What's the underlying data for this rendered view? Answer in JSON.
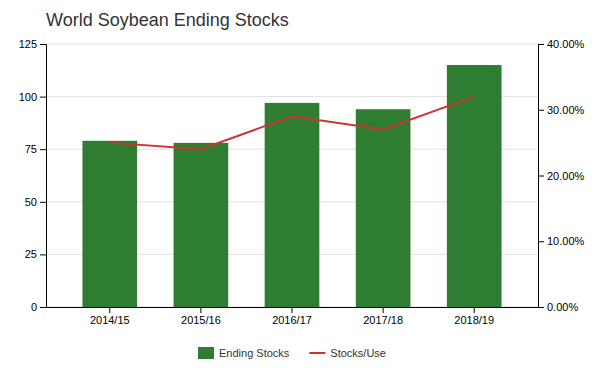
{
  "chart_data": {
    "type": "bar",
    "title": "World Soybean Ending Stocks",
    "categories": [
      "2014/15",
      "2015/16",
      "2016/17",
      "2017/18",
      "2018/19"
    ],
    "series": [
      {
        "name": "Ending Stocks",
        "type": "bar",
        "color": "#2e7d32",
        "values": [
          79,
          78,
          97,
          94,
          115
        ]
      },
      {
        "name": "Stocks/Use",
        "type": "line",
        "axis": "y2",
        "color": "#cc3333",
        "values": [
          0.25,
          0.24,
          0.29,
          0.27,
          0.32
        ]
      }
    ],
    "ylim": [
      0,
      125
    ],
    "yticks": [
      0,
      25,
      50,
      75,
      100,
      125
    ],
    "y2lim": [
      0.0,
      0.4
    ],
    "y2ticks": [
      {
        "value": 0.0,
        "label": "0.00%"
      },
      {
        "value": 0.1,
        "label": "10.00%"
      },
      {
        "value": 0.2,
        "label": "20.00%"
      },
      {
        "value": 0.3,
        "label": "30.00%"
      },
      {
        "value": 0.4,
        "label": "40.00%"
      }
    ],
    "grid": true,
    "legend": "bottom"
  }
}
